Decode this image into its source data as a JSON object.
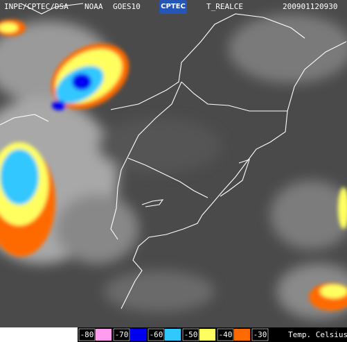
{
  "header": {
    "source": "INPE/CPTEC/DSA",
    "agency": "NOAA",
    "satellite": "GOES10",
    "logo": "CPTEC",
    "product": "T_REALCE",
    "timestamp": "200901120930"
  },
  "legend": {
    "entries": [
      {
        "label": "-80",
        "color": "#ff9cf0"
      },
      {
        "label": "-70",
        "color": "#0000f0"
      },
      {
        "label": "-60",
        "color": "#30c8ff"
      },
      {
        "label": "-50",
        "color": "#ffff60"
      },
      {
        "label": "-40",
        "color": "#ff6a00"
      },
      {
        "label": "-30",
        "color": "#000000"
      }
    ],
    "unit": "Temp. Celsius"
  }
}
